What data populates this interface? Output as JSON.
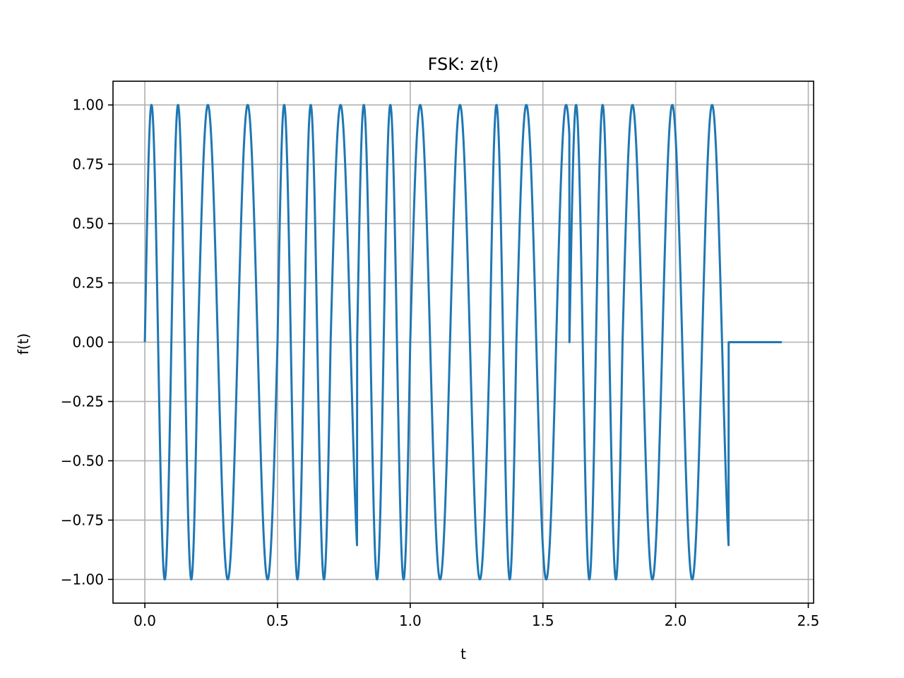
{
  "chart_data": {
    "type": "line",
    "title": "FSK: z(t)",
    "xlabel": "t",
    "ylabel": "f(t)",
    "xlim": [
      -0.12,
      2.52
    ],
    "ylim": [
      -1.1,
      1.1
    ],
    "xticks": [
      0.0,
      0.5,
      1.0,
      1.5,
      2.0,
      2.5
    ],
    "xtick_labels": [
      "0.0",
      "0.5",
      "1.0",
      "1.5",
      "2.0",
      "2.5"
    ],
    "yticks": [
      1.0,
      0.75,
      0.5,
      0.25,
      0.0,
      -0.25,
      -0.5,
      -0.75,
      -1.0
    ],
    "ytick_labels": [
      "1.00",
      "0.75",
      "0.50",
      "0.25",
      "0.00",
      "−0.25",
      "−0.50",
      "−0.75",
      "−1.00"
    ],
    "grid": true,
    "line_color": "#1f77b4",
    "bits": [
      {
        "t_start": 0.0,
        "t_end": 0.2,
        "freq_hz": 10
      },
      {
        "t_start": 0.2,
        "t_end": 0.5,
        "freq_hz": 6.6667
      },
      {
        "t_start": 0.5,
        "t_end": 0.7,
        "freq_hz": 10
      },
      {
        "t_start": 0.7,
        "t_end": 0.8,
        "freq_hz": 6.6667
      },
      {
        "t_start": 0.8,
        "t_end": 1.0,
        "freq_hz": 10
      },
      {
        "t_start": 1.0,
        "t_end": 1.3,
        "freq_hz": 6.6667
      },
      {
        "t_start": 1.3,
        "t_end": 1.4,
        "freq_hz": 10
      },
      {
        "t_start": 1.4,
        "t_end": 1.6,
        "freq_hz": 6.6667
      },
      {
        "t_start": 1.6,
        "t_end": 1.8,
        "freq_hz": 10
      },
      {
        "t_start": 1.8,
        "t_end": 2.2,
        "freq_hz": 6.6667
      }
    ],
    "tail": {
      "t_start": 2.2,
      "t_end": 2.4,
      "value": 0.0
    }
  }
}
